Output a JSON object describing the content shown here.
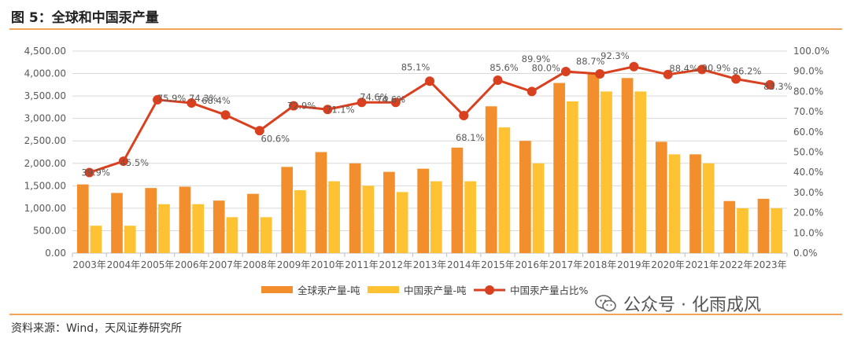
{
  "figure": {
    "title": "图 5：全球和中国汞产量",
    "source": "资料来源：Wind，天风证券研究所",
    "watermark": "公众号 · 化雨成风"
  },
  "colors": {
    "global_bar": "#f28e2b",
    "china_bar": "#ffc233",
    "ratio_line": "#d9401f",
    "grid": "#d9d9d9",
    "accent_rule": "#f0a55a"
  },
  "chart_data": {
    "type": "bar",
    "categories": [
      "2003年",
      "2004年",
      "2005年",
      "2006年",
      "2007年",
      "2008年",
      "2009年",
      "2010年",
      "2011年",
      "2012年",
      "2013年",
      "2014年",
      "2015年",
      "2016年",
      "2017年",
      "2018年",
      "2019年",
      "2020年",
      "2021年",
      "2022年",
      "2023年"
    ],
    "series": [
      {
        "name": "全球汞产量-吨",
        "type": "bar",
        "axis": "left",
        "values": [
          1530,
          1340,
          1450,
          1480,
          1170,
          1320,
          1920,
          2250,
          2000,
          1810,
          1880,
          2350,
          3270,
          2500,
          3790,
          4000,
          3900,
          2480,
          2200,
          1160,
          1210
        ]
      },
      {
        "name": "中国汞产量-吨",
        "type": "bar",
        "axis": "left",
        "values": [
          610,
          610,
          1090,
          1090,
          800,
          800,
          1400,
          1600,
          1500,
          1360,
          1600,
          1600,
          2800,
          2000,
          3380,
          3600,
          3600,
          2200,
          2000,
          1000,
          1000
        ]
      },
      {
        "name": "中国汞产量占比%",
        "type": "line",
        "axis": "right",
        "values": [
          39.9,
          45.5,
          75.9,
          74.3,
          68.4,
          60.6,
          72.9,
          71.1,
          74.6,
          74.6,
          85.1,
          68.1,
          85.6,
          80.0,
          89.9,
          88.7,
          92.3,
          88.4,
          90.9,
          86.2,
          83.3
        ],
        "labels": [
          "39.9%",
          "45.5%",
          "75.9%",
          "74.3%",
          "68.4%",
          "60.6%",
          "72.9%",
          "71.1%",
          "74.6%",
          "74.6%",
          "85.1%",
          "68.1%",
          "85.6%",
          "80.0%",
          "89.9%",
          "88.7%",
          "92.3%",
          "88.4%",
          "90.9%",
          "86.2%",
          "83.3%"
        ]
      }
    ],
    "y_left": {
      "min": 0,
      "max": 4500,
      "step": 500,
      "tick_labels": [
        "0.00",
        "500.00",
        "1,000.00",
        "1,500.00",
        "2,000.00",
        "2,500.00",
        "3,000.00",
        "3,500.00",
        "4,000.00",
        "4,500.00"
      ]
    },
    "y_right": {
      "min": 0,
      "max": 100,
      "step": 10,
      "tick_labels": [
        "0.0%",
        "10.0%",
        "20.0%",
        "30.0%",
        "40.0%",
        "50.0%",
        "60.0%",
        "70.0%",
        "80.0%",
        "90.0%",
        "100.0%"
      ]
    },
    "grid": true,
    "legend": "bottom-center"
  }
}
